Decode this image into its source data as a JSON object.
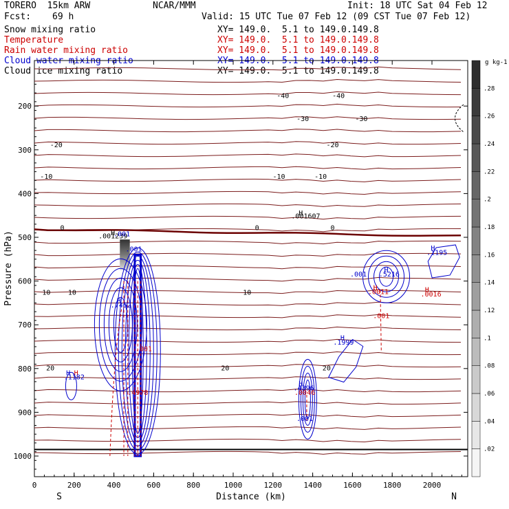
{
  "header": {
    "model": "TORERO  15km ARW",
    "center": "NCAR/MMM",
    "init": "Init: 18 UTC Sat 04 Feb 12",
    "fcst_label": "Fcst:",
    "fcst_value": "69 h",
    "valid": "Valid: 15 UTC Tue 07 Feb 12 (09 CST Tue 07 Feb 12)"
  },
  "fields": [
    {
      "name": "Snow mixing ratio",
      "xy": "XY= 149.0.  5.1 to 149.0.149.8",
      "color": "#000000"
    },
    {
      "name": "Temperature",
      "xy": "XY= 149.0.  5.1 to 149.0.149.8",
      "color": "#cc0000"
    },
    {
      "name": "Rain water mixing ratio",
      "xy": "XY= 149.0.  5.1 to 149.0.149.8",
      "color": "#cc0000"
    },
    {
      "name": "Cloud water mixing ratio",
      "xy": "XY= 149.0.  5.1 to 149.0.149.8",
      "color": "#0000cc"
    },
    {
      "name": "Cloud ice mixing ratio",
      "xy": "XY= 149.0.  5.1 to 149.0.149.8",
      "color": "#000000"
    }
  ],
  "chart_data": {
    "type": "contour-cross-section",
    "xlabel": "Distance (km)",
    "ylabel": "Pressure (hPa)",
    "xlim": [
      0,
      2180
    ],
    "ylim": [
      1050,
      100
    ],
    "x_ticks": [
      0,
      200,
      400,
      600,
      800,
      1000,
      1200,
      1400,
      1600,
      1800,
      2000
    ],
    "y_ticks": [
      200,
      300,
      400,
      500,
      600,
      700,
      800,
      900,
      1000
    ],
    "x_end_labels": {
      "left": "S",
      "right": "N"
    },
    "temperature_isotherms": [
      {
        "label": "-40",
        "p": 175,
        "label_x": [
          1250,
          1530
        ]
      },
      {
        "label": "-30",
        "p": 228,
        "label_x": [
          1350,
          1645
        ]
      },
      {
        "label": "-20",
        "p": 288,
        "label_x": [
          110,
          1500
        ]
      },
      {
        "label": "-10",
        "p": 360,
        "label_x": [
          60,
          1230,
          1440
        ]
      },
      {
        "label": "0",
        "p": 477,
        "label_x": [
          140,
          1120,
          1500
        ]
      },
      {
        "label": "10",
        "p": 625,
        "label_x": [
          60,
          190,
          1070
        ]
      },
      {
        "label": "20",
        "p": 798,
        "label_x": [
          80,
          960,
          1470
        ]
      }
    ],
    "colorbar": {
      "unit": "g kg-1",
      "ticks": [
        ".02",
        ".04",
        ".06",
        ".08",
        ".1",
        ".12",
        ".14",
        ".16",
        ".18",
        ".2",
        ".22",
        ".24",
        ".26",
        ".28"
      ]
    },
    "annotations": [
      {
        "text": "H",
        "x": 395,
        "p": 495,
        "color": "#000000"
      },
      {
        "text": ".001239",
        "x": 395,
        "p": 502,
        "color": "#000000"
      },
      {
        "text": ".001",
        "x": 440,
        "p": 498,
        "color": "#0000cc"
      },
      {
        "text": ".001",
        "x": 500,
        "p": 532,
        "color": "#0000cc"
      },
      {
        "text": "H",
        "x": 425,
        "p": 650,
        "color": "#0000cc"
      },
      {
        "text": ".7462",
        "x": 435,
        "p": 660,
        "color": "#0000cc"
      },
      {
        "text": ".001",
        "x": 550,
        "p": 760,
        "color": "#cc0000"
      },
      {
        "text": ".4978",
        "x": 520,
        "p": 860,
        "color": "#cc0000"
      },
      {
        "text": "H",
        "x": 170,
        "p": 815,
        "color": "#0000cc"
      },
      {
        "text": "H",
        "x": 210,
        "p": 815,
        "color": "#cc0000"
      },
      {
        "text": ".1182",
        "x": 200,
        "p": 825,
        "color": "#0000cc"
      },
      {
        "text": "H",
        "x": 1340,
        "p": 450,
        "color": "#000000"
      },
      {
        "text": ".001607",
        "x": 1365,
        "p": 457,
        "color": "#000000"
      },
      {
        "text": "H",
        "x": 1550,
        "p": 735,
        "color": "#0000cc"
      },
      {
        "text": ".1999",
        "x": 1555,
        "p": 745,
        "color": "#0000cc"
      },
      {
        "text": "H",
        "x": 1340,
        "p": 840,
        "color": "#0000cc"
      },
      {
        "text": ".4396",
        "x": 1355,
        "p": 850,
        "color": "#0000cc"
      },
      {
        "text": ".0046",
        "x": 1360,
        "p": 860,
        "color": "#cc0000"
      },
      {
        "text": ".001",
        "x": 1360,
        "p": 920,
        "color": "#0000cc"
      },
      {
        "text": "H",
        "x": 1770,
        "p": 580,
        "color": "#0000cc"
      },
      {
        "text": ".5216",
        "x": 1785,
        "p": 590,
        "color": "#0000cc"
      },
      {
        "text": ".001",
        "x": 1630,
        "p": 590,
        "color": "#0000cc"
      },
      {
        "text": "H",
        "x": 1715,
        "p": 620,
        "color": "#cc0000"
      },
      {
        "text": ".0011",
        "x": 1730,
        "p": 630,
        "color": "#cc0000"
      },
      {
        "text": ".001",
        "x": 1745,
        "p": 685,
        "color": "#cc0000"
      },
      {
        "text": "H",
        "x": 2005,
        "p": 530,
        "color": "#0000cc"
      },
      {
        "text": ".1195",
        "x": 2025,
        "p": 540,
        "color": "#0000cc"
      },
      {
        "text": "H",
        "x": 1975,
        "p": 625,
        "color": "#cc0000"
      },
      {
        "text": ".0016",
        "x": 1995,
        "p": 635,
        "color": "#cc0000"
      }
    ]
  }
}
